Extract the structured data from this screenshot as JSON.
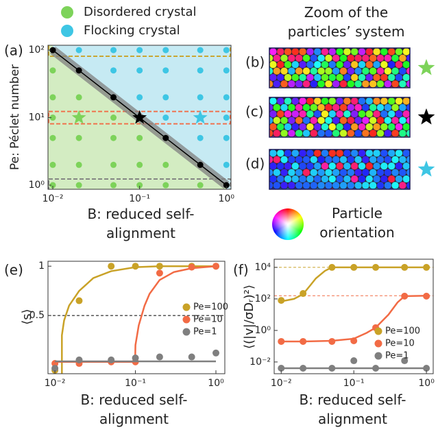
{
  "figure": {
    "legend_title": "Zoom of the particles’ system",
    "orientation_label": "Particle orientation",
    "zoom_labels": [
      "(b)",
      "(c)",
      "(d)"
    ],
    "zoom_star_colors": [
      "#7dd35a",
      "#000000",
      "#3ec6e4"
    ]
  },
  "chart_data": [
    {
      "type": "scatter",
      "panel_label": "(a)",
      "xlabel": "B: reduced self-alignment",
      "ylabel": "Pe: Péclet number",
      "xscale": "log",
      "yscale": "log",
      "xlim": [
        0.0088,
        1.13
      ],
      "ylim": [
        0.87,
        118
      ],
      "xticks": [
        {
          "value": 0.01,
          "label": "10⁻²"
        },
        {
          "value": 0.1,
          "label": "10⁻¹"
        },
        {
          "value": 1,
          "label": "10⁰"
        }
      ],
      "yticks": [
        {
          "value": 1,
          "label": "10⁰"
        },
        {
          "value": 10,
          "label": "10¹"
        },
        {
          "value": 100,
          "label": "10²"
        }
      ],
      "legend": "above",
      "region_colors": [
        "#d3ecc2",
        "#c6eaf3"
      ],
      "bands": [
        {
          "value": 100,
          "color": "#c9a227"
        },
        {
          "value": 10,
          "color": "#f26b45"
        },
        {
          "value": 1,
          "color": "#7f7f7f"
        }
      ],
      "series": [
        {
          "name": "Disordered crystal",
          "color": "#7dd35a",
          "x": [
            0.01,
            0.01,
            0.01,
            0.01,
            0.01,
            0.01,
            0.02,
            0.02,
            0.02,
            0.02,
            0.05,
            0.05,
            0.05,
            0.05,
            0.1,
            0.1,
            0.1,
            0.2,
            0.2,
            0.5
          ],
          "y": [
            1,
            2,
            5,
            10,
            20,
            50,
            1,
            2,
            5,
            20,
            1,
            2,
            5,
            10,
            1,
            2,
            5,
            1,
            2,
            1
          ]
        },
        {
          "name": "Flocking crystal",
          "color": "#3ec6e4",
          "x": [
            0.02,
            0.05,
            0.05,
            0.1,
            0.1,
            0.1,
            0.2,
            0.2,
            0.2,
            0.2,
            0.5,
            0.5,
            0.5,
            0.5,
            1,
            1,
            1,
            1,
            1,
            1
          ],
          "y": [
            100,
            50,
            100,
            20,
            50,
            100,
            10,
            20,
            50,
            100,
            5,
            20,
            50,
            100,
            2,
            5,
            10,
            20,
            50,
            100
          ]
        },
        {
          "color": "#000000",
          "x": [
            0.01,
            0.02,
            0.05,
            0.1,
            0.2,
            0.5,
            1
          ],
          "y": [
            100,
            50,
            20,
            10,
            5,
            2,
            1
          ]
        }
      ],
      "stars": {
        "x": [
          0.02,
          0.1,
          0.5
        ],
        "y": [
          10,
          10,
          10
        ],
        "colors": [
          "#7dd35a",
          "#000000",
          "#3ec6e4"
        ]
      }
    },
    {
      "type": "scatter",
      "panel_label": "(e)",
      "xlabel": "B: reduced self-alignment",
      "ylabel": "⟨s⟩",
      "xscale": "log",
      "yscale": "linear",
      "xlim": [
        0.0082,
        1.29
      ],
      "ylim": [
        -0.09,
        1.05
      ],
      "xticks": [
        {
          "value": 0.01,
          "label": "10⁻²"
        },
        {
          "value": 0.1,
          "label": "10⁻¹"
        },
        {
          "value": 1,
          "label": "10⁰"
        }
      ],
      "yticks": [
        0.5,
        1
      ],
      "legend": "center right",
      "hlines": [
        {
          "value": 0.5,
          "color": "#000000"
        }
      ],
      "series": [
        {
          "name": "Pe=100",
          "color": "#c9a227",
          "x": [
            0.01,
            0.02,
            0.05,
            0.1,
            0.2,
            0.5,
            1
          ],
          "y": [
            -0.055,
            0.65,
            1,
            1,
            1,
            1,
            1
          ],
          "fit_x": [
            0.0122,
            0.0122,
            0.013,
            0.015,
            0.02,
            0.03,
            0.05,
            0.1,
            0.2,
            0.5,
            1
          ],
          "fit_y": [
            -0.09,
            0.3,
            0.45,
            0.6,
            0.75,
            0.88,
            0.95,
            0.99,
            1,
            1,
            1
          ]
        },
        {
          "name": "Pe=10",
          "color": "#f26b45",
          "x": [
            0.01,
            0.02,
            0.05,
            0.1,
            0.2,
            0.5,
            1
          ],
          "y": [
            0.014,
            0.014,
            0.03,
            0.03,
            0.93,
            0.99,
            1
          ],
          "fit_x": [
            0.01,
            0.099,
            0.1,
            0.11,
            0.13,
            0.15,
            0.2,
            0.3,
            0.5,
            1
          ],
          "fit_y": [
            0.03,
            0.03,
            0.2,
            0.4,
            0.6,
            0.72,
            0.86,
            0.94,
            0.98,
            1
          ]
        },
        {
          "name": "Pe=1",
          "color": "#7f7f7f",
          "x": [
            0.01,
            0.02,
            0.05,
            0.1,
            0.2,
            0.5,
            1
          ],
          "y": [
            -0.035,
            0.05,
            0.05,
            0.07,
            0.08,
            0.08,
            0.12
          ],
          "fit_x": [
            0.01,
            1
          ],
          "fit_y": [
            0.035,
            0.035
          ]
        }
      ]
    },
    {
      "type": "scatter",
      "panel_label": "(f)",
      "xlabel": "B: reduced self-alignment",
      "ylabel": "⟨(|v|/σDᵣ)²⟩",
      "xscale": "log",
      "yscale": "log",
      "xlim": [
        0.008,
        1.24
      ],
      "ylim": [
        0.0018,
        33000
      ],
      "xticks": [
        {
          "value": 0.01,
          "label": "10⁻²"
        },
        {
          "value": 0.1,
          "label": "10⁻¹"
        },
        {
          "value": 1,
          "label": "10⁰"
        }
      ],
      "yticks": [
        {
          "value": 0.01,
          "label": "10⁻²"
        },
        {
          "value": 1,
          "label": "10⁰"
        },
        {
          "value": 100,
          "label": "10²"
        },
        {
          "value": 10000,
          "label": "10⁴"
        }
      ],
      "legend": "lower right",
      "hlines": [
        {
          "value": 10000,
          "color": "#c9a227"
        },
        {
          "value": 160,
          "color": "#f26b45"
        }
      ],
      "series": [
        {
          "name": "Pe=100",
          "color": "#c9a227",
          "x": [
            0.01,
            0.02,
            0.05,
            0.1,
            0.2,
            0.5,
            1
          ],
          "y": [
            80,
            220,
            10000,
            10000,
            10000,
            10000,
            10000
          ],
          "fit_x": [
            0.01,
            0.015,
            0.02,
            0.025,
            0.03,
            0.04,
            0.05,
            0.1,
            0.2,
            0.5,
            1
          ],
          "fit_y": [
            70,
            100,
            200,
            700,
            2000,
            6000,
            10000,
            10000,
            10000,
            10000,
            10000
          ]
        },
        {
          "name": "Pe=10",
          "color": "#f26b45",
          "x": [
            0.01,
            0.02,
            0.05,
            0.1,
            0.2,
            0.5,
            1
          ],
          "y": [
            0.2,
            0.2,
            0.2,
            0.22,
            1.5,
            150,
            150
          ],
          "fit_x": [
            0.01,
            0.02,
            0.05,
            0.1,
            0.15,
            0.2,
            0.3,
            0.4,
            0.5,
            1
          ],
          "fit_y": [
            0.2,
            0.2,
            0.22,
            0.3,
            0.7,
            1.5,
            10,
            60,
            150,
            160
          ]
        },
        {
          "name": "Pe=1",
          "color": "#7f7f7f",
          "x": [
            0.01,
            0.02,
            0.05,
            0.1,
            0.2,
            0.5,
            1
          ],
          "y": [
            0.004,
            0.004,
            0.004,
            0.012,
            0.004,
            0.012,
            0.004
          ],
          "fit_x": [
            0.01,
            1
          ],
          "fit_y": [
            0.004,
            0.004
          ]
        }
      ]
    }
  ]
}
